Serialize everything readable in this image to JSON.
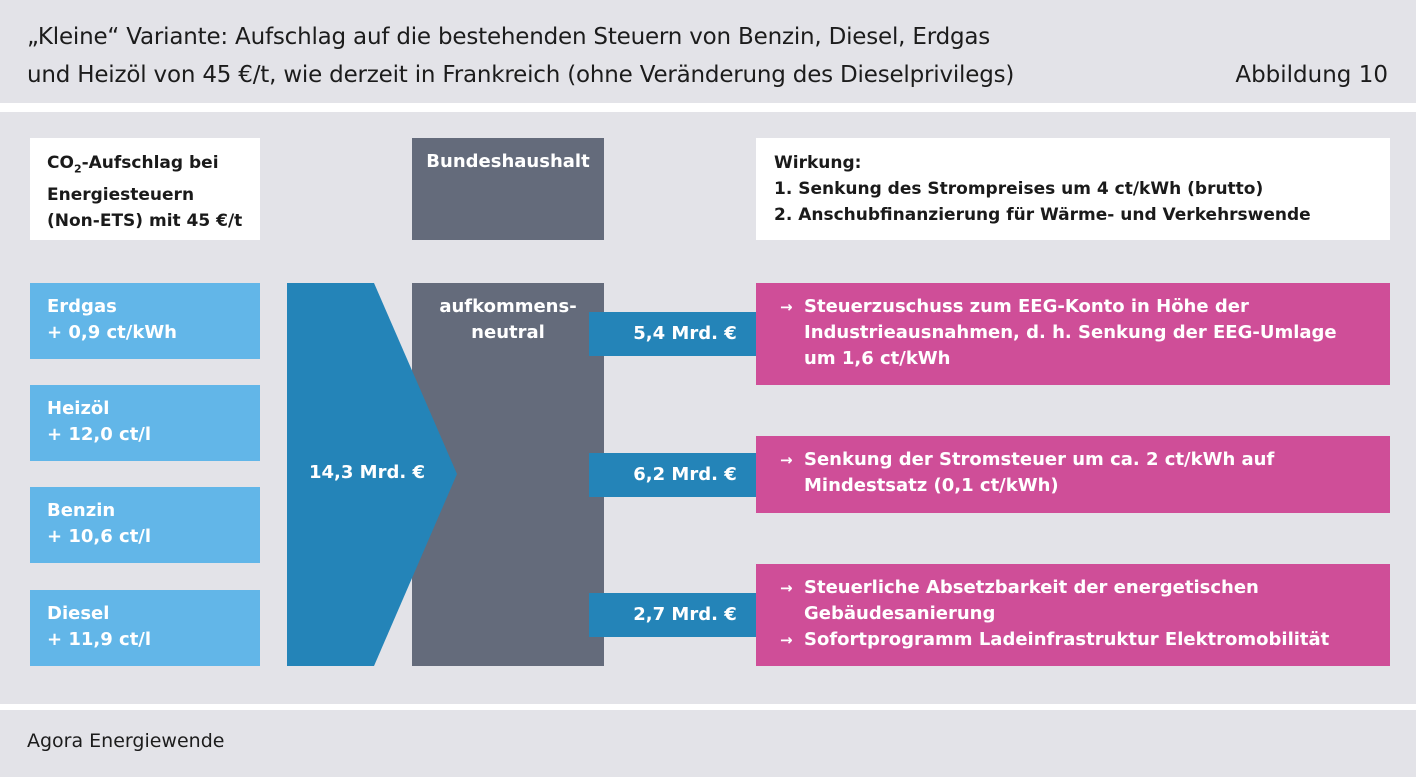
{
  "header": {
    "title_line1": "„Kleine“ Variante: Aufschlag auf die bestehenden Steuern von Benzin, Diesel, Erdgas",
    "title_line2": "und Heizöl von 45 €/t, wie derzeit in Frankreich (ohne Veränderung des Dieselprivilegs)",
    "figure_number": "Abbildung 10"
  },
  "co2_box": {
    "line1_prefix": "CO",
    "line1_sub": "2",
    "line1_suffix": "-Aufschlag bei",
    "line2": "Energiesteuern",
    "line3": "(Non-ETS) mit 45 €/t"
  },
  "fuels": [
    {
      "name": "Erdgas",
      "value": "+ 0,9 ct/kWh"
    },
    {
      "name": "Heizöl",
      "value": "+ 12,0 ct/l"
    },
    {
      "name": "Benzin",
      "value": "+ 10,6 ct/l"
    },
    {
      "name": "Diesel",
      "value": "+ 11,9 ct/l"
    }
  ],
  "total": "14,3 Mrd. €",
  "budget": {
    "head": "Bundeshaushalt",
    "body_line1": "aufkommens-",
    "body_line2": "neutral"
  },
  "effect": {
    "heading": "Wirkung:",
    "items": [
      "1.  Senkung des Strompreises um 4 ct/kWh (brutto)",
      "2.  Anschubfinanzierung für Wärme- und Verkehrswende"
    ]
  },
  "flows": [
    {
      "amount": "5,4 Mrd. €",
      "bullets": [
        [
          "Steuerzuschuss zum EEG-Konto in Höhe der",
          "Industrieausnahmen, d. h. Senkung der EEG-Umlage",
          "um 1,6 ct/kWh"
        ]
      ]
    },
    {
      "amount": "6,2 Mrd. €",
      "bullets": [
        [
          "Senkung der Stromsteuer um ca. 2 ct/kWh auf",
          "Mindestsatz (0,1 ct/kWh)"
        ]
      ]
    },
    {
      "amount": "2,7 Mrd. €",
      "bullets": [
        [
          "Steuerliche Absetzbarkeit der energetischen",
          "Gebäudesanierung"
        ],
        [
          "Sofortprogramm Ladeinfrastruktur Elektromobilität"
        ]
      ]
    }
  ],
  "bullet_symbol": "→",
  "source": "Agora Energiewende",
  "colors": {
    "background_band": "#e3e3e8",
    "fuel_blue": "#62b6e8",
    "arrow_blue": "#2484b8",
    "budget_gray": "#646b7b",
    "effect_pink": "#cf4e98"
  }
}
